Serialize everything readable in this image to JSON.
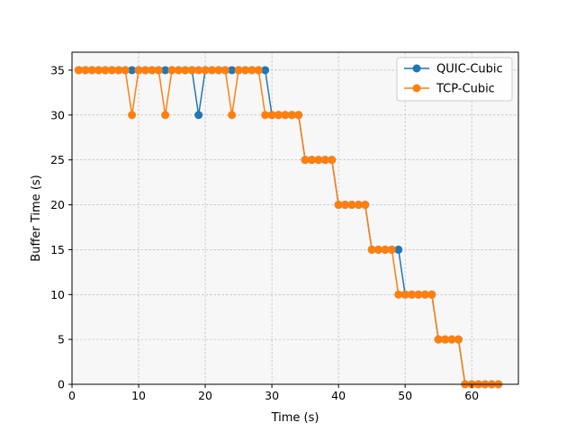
{
  "chart_data": {
    "type": "line",
    "title": "",
    "xlabel": "Time (s)",
    "ylabel": "Buffer Time (s)",
    "xlim": [
      0,
      67
    ],
    "ylim": [
      0,
      37
    ],
    "xticks": [
      0,
      10,
      20,
      30,
      40,
      50,
      60
    ],
    "yticks": [
      0,
      5,
      10,
      15,
      20,
      25,
      30,
      35
    ],
    "grid": true,
    "legend_position": "top-right",
    "background": "#f7f7f7",
    "x": [
      1,
      2,
      3,
      4,
      5,
      6,
      7,
      8,
      9,
      10,
      11,
      12,
      13,
      14,
      15,
      16,
      17,
      18,
      19,
      20,
      21,
      22,
      23,
      24,
      25,
      26,
      27,
      28,
      29,
      30,
      31,
      32,
      33,
      34,
      35,
      36,
      37,
      38,
      39,
      40,
      41,
      42,
      43,
      44,
      45,
      46,
      47,
      48,
      49,
      50,
      51,
      52,
      53,
      54,
      55,
      56,
      57,
      58,
      59,
      60,
      61,
      62,
      63,
      64
    ],
    "series": [
      {
        "name": "QUIC-Cubic",
        "color": "#1f77b4",
        "values": [
          35,
          35,
          35,
          35,
          35,
          35,
          35,
          35,
          35,
          35,
          35,
          35,
          35,
          35,
          35,
          35,
          35,
          35,
          30,
          35,
          35,
          35,
          35,
          35,
          35,
          35,
          35,
          35,
          35,
          30,
          30,
          30,
          30,
          30,
          25,
          25,
          25,
          25,
          25,
          20,
          20,
          20,
          20,
          20,
          15,
          15,
          15,
          15,
          15,
          10,
          10,
          10,
          10,
          10,
          5,
          5,
          5,
          5,
          0,
          0,
          0,
          0,
          0,
          0
        ]
      },
      {
        "name": "TCP-Cubic",
        "color": "#ff7f0e",
        "values": [
          35,
          35,
          35,
          35,
          35,
          35,
          35,
          35,
          30,
          35,
          35,
          35,
          35,
          30,
          35,
          35,
          35,
          35,
          35,
          35,
          35,
          35,
          35,
          30,
          35,
          35,
          35,
          35,
          30,
          30,
          30,
          30,
          30,
          30,
          25,
          25,
          25,
          25,
          25,
          20,
          20,
          20,
          20,
          20,
          15,
          15,
          15,
          15,
          10,
          10,
          10,
          10,
          10,
          10,
          5,
          5,
          5,
          5,
          0,
          0,
          0,
          0,
          0,
          0
        ]
      }
    ]
  }
}
